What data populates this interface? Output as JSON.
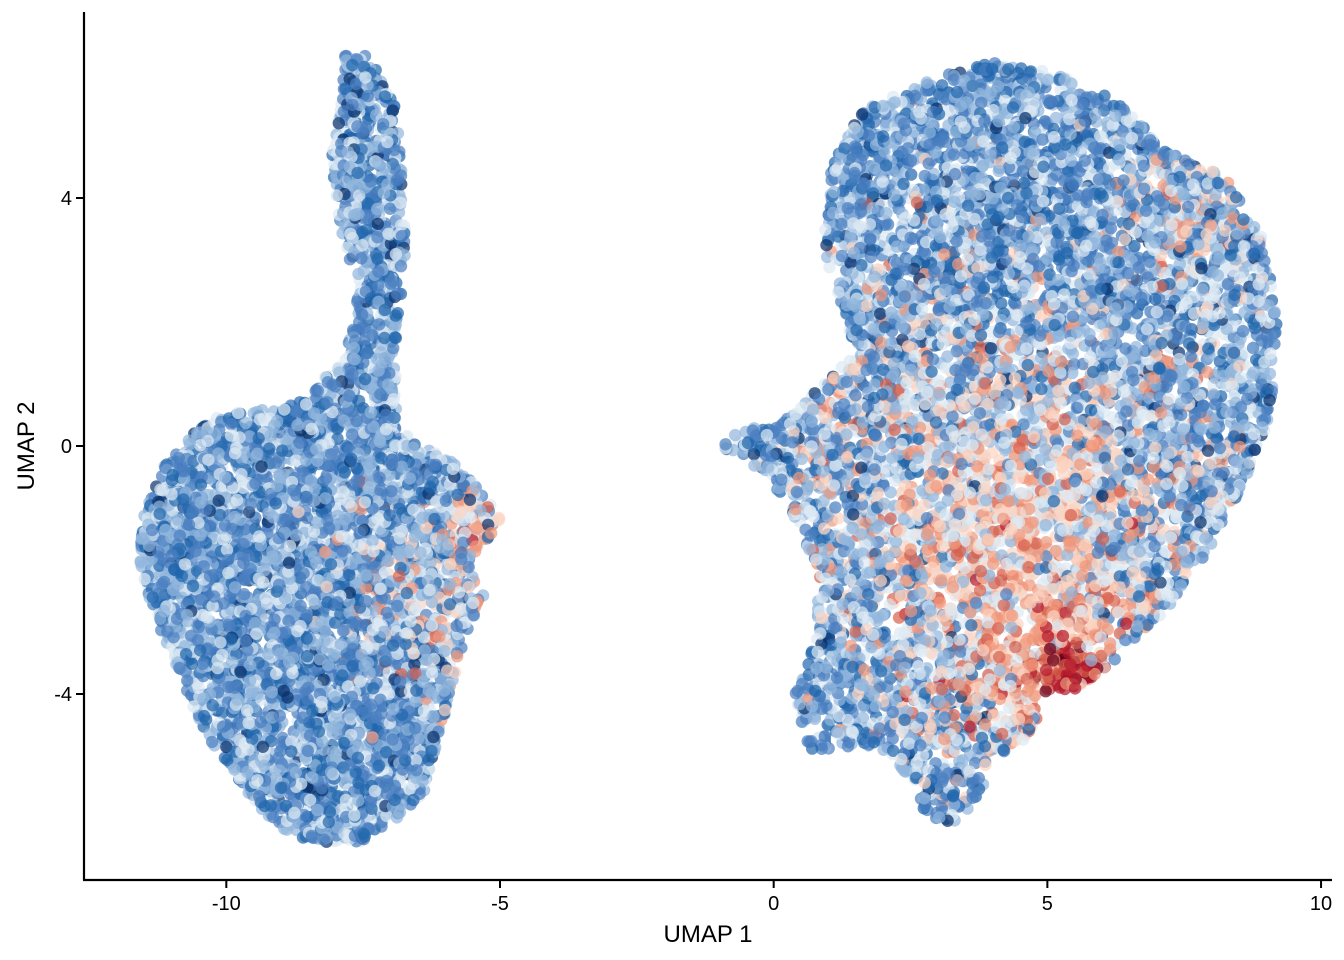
{
  "chart_data": {
    "type": "scatter",
    "title": "",
    "xlabel": "UMAP 1",
    "ylabel": "UMAP 2",
    "xlim": [
      -12.6,
      10.2
    ],
    "ylim": [
      -7.0,
      7.0
    ],
    "xticks": [
      -10,
      -5,
      0,
      5,
      10
    ],
    "yticks": [
      -4,
      0,
      4
    ],
    "xtick_labels": [
      "-10",
      "-5",
      "0",
      "5",
      "10"
    ],
    "ytick_labels": [
      "-4",
      "0",
      "4"
    ],
    "grid": false,
    "legend": "none",
    "point_opacity": 0.7,
    "color_scale": {
      "name": "diverging blue-white-red",
      "stops": [
        "#08306b",
        "#2166ac",
        "#4a7fc0",
        "#92b7dd",
        "#dde9f4",
        "#fbd4c2",
        "#f1977a",
        "#d6604d",
        "#b2182b",
        "#67001f"
      ]
    },
    "clusters": [
      {
        "name": "left cluster",
        "x_range": [
          -11.6,
          -4.9
        ],
        "y_range": [
          -6.4,
          6.4
        ],
        "dominant_color": "#2a5ea6",
        "region": [
          [
            -7.9,
            6.3
          ],
          [
            -7.4,
            6.3
          ],
          [
            -6.9,
            5.5
          ],
          [
            -6.8,
            4.5
          ],
          [
            -6.7,
            3.0
          ],
          [
            -6.9,
            1.8
          ],
          [
            -6.9,
            0.3
          ],
          [
            -6.4,
            0.0
          ],
          [
            -5.8,
            -0.3
          ],
          [
            -5.3,
            -0.8
          ],
          [
            -4.9,
            -1.3
          ],
          [
            -5.4,
            -1.6
          ],
          [
            -5.5,
            -2.4
          ],
          [
            -5.3,
            -2.4
          ],
          [
            -5.6,
            -3.0
          ],
          [
            -5.8,
            -3.6
          ],
          [
            -6.1,
            -4.6
          ],
          [
            -6.4,
            -5.6
          ],
          [
            -7.0,
            -6.1
          ],
          [
            -7.6,
            -6.4
          ],
          [
            -8.3,
            -6.4
          ],
          [
            -9.0,
            -6.2
          ],
          [
            -9.6,
            -5.6
          ],
          [
            -10.4,
            -4.6
          ],
          [
            -11.1,
            -3.2
          ],
          [
            -11.6,
            -2.0
          ],
          [
            -11.5,
            -1.0
          ],
          [
            -11.2,
            -0.4
          ],
          [
            -10.6,
            0.2
          ],
          [
            -10.1,
            0.5
          ],
          [
            -9.2,
            0.6
          ],
          [
            -8.5,
            0.8
          ],
          [
            -8.2,
            1.1
          ],
          [
            -7.8,
            1.6
          ],
          [
            -7.6,
            2.5
          ],
          [
            -7.9,
            3.5
          ],
          [
            -8.1,
            4.5
          ],
          [
            -7.9,
            5.5
          ]
        ],
        "hotspots": [
          {
            "x": -5.2,
            "y": -1.3,
            "spread": 0.5,
            "shift": 3.5,
            "weight": 0.5
          },
          {
            "x": -6.2,
            "y": -2.5,
            "spread": 0.9,
            "shift": 2.6,
            "weight": 0.35
          }
        ]
      },
      {
        "name": "right cluster",
        "x_range": [
          -1.0,
          9.2
        ],
        "y_range": [
          -6.2,
          6.2
        ],
        "dominant_color": "#6a95cc",
        "region": [
          [
            -1.0,
            0.0
          ],
          [
            -0.6,
            0.3
          ],
          [
            0.2,
            0.4
          ],
          [
            0.9,
            1.0
          ],
          [
            1.5,
            1.5
          ],
          [
            1.2,
            2.4
          ],
          [
            0.9,
            3.0
          ],
          [
            1.0,
            4.4
          ],
          [
            1.6,
            5.4
          ],
          [
            2.8,
            5.9
          ],
          [
            4.0,
            6.2
          ],
          [
            5.2,
            6.0
          ],
          [
            6.2,
            5.6
          ],
          [
            7.2,
            4.8
          ],
          [
            8.2,
            4.4
          ],
          [
            8.9,
            3.4
          ],
          [
            9.2,
            2.2
          ],
          [
            9.1,
            0.6
          ],
          [
            8.6,
            -0.6
          ],
          [
            8.0,
            -1.6
          ],
          [
            7.2,
            -2.6
          ],
          [
            6.3,
            -3.4
          ],
          [
            5.6,
            -3.9
          ],
          [
            4.8,
            -4.0
          ],
          [
            4.8,
            -4.6
          ],
          [
            4.4,
            -4.9
          ],
          [
            3.9,
            -5.0
          ],
          [
            3.8,
            -5.6
          ],
          [
            3.4,
            -6.1
          ],
          [
            2.8,
            -6.1
          ],
          [
            2.5,
            -5.3
          ],
          [
            1.7,
            -4.9
          ],
          [
            0.6,
            -4.9
          ],
          [
            0.4,
            -4.0
          ],
          [
            0.8,
            -3.0
          ],
          [
            0.8,
            -2.0
          ],
          [
            0.3,
            -1.0
          ],
          [
            -0.4,
            -0.3
          ]
        ],
        "hotspots": [
          {
            "x": 5.4,
            "y": -3.6,
            "spread": 0.35,
            "shift": 6.0,
            "weight": 1.0
          },
          {
            "x": 5.0,
            "y": -3.3,
            "spread": 1.2,
            "shift": 3.4,
            "weight": 0.7
          },
          {
            "x": 4.2,
            "y": -1.0,
            "spread": 2.2,
            "shift": 2.6,
            "weight": 0.6
          },
          {
            "x": 7.6,
            "y": 3.8,
            "spread": 0.8,
            "shift": 2.4,
            "weight": 0.35
          }
        ]
      }
    ]
  }
}
